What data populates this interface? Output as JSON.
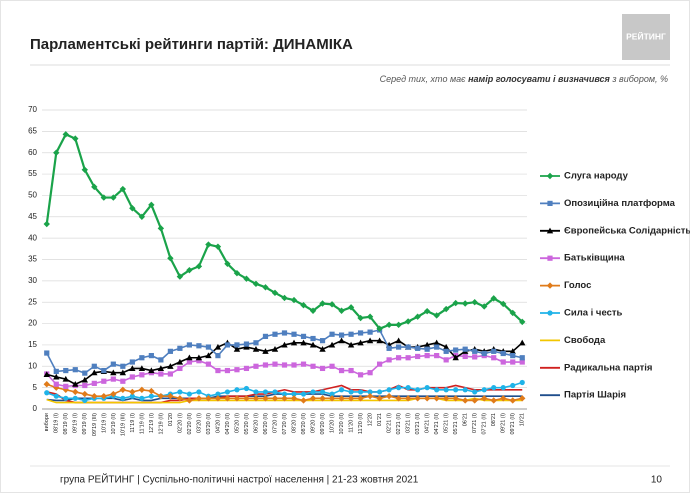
{
  "header": {
    "title": "Парламентські рейтинги партій: ДИНАМІКА",
    "logo": "РЕЙТИНГ",
    "subtitle_parts": [
      "Серед тих, хто має ",
      "намір голосувати і визначився",
      " з вибором, %"
    ]
  },
  "chart_data": {
    "type": "line",
    "categories": [
      "вибори",
      "08'19 (I)",
      "08'19 (II)",
      "09'19 (I)",
      "09'19 (II)",
      "09'19 (III)",
      "10'19 (I)",
      "10'19 (II)",
      "10'19 (III)",
      "11'19 (I)",
      "11'19 (II)",
      "12'19 (I)",
      "12'19 (II)",
      "01'20",
      "02'20 (I)",
      "02'20 (II)",
      "03'20 (I)",
      "03'20 (II)",
      "04'20 (I)",
      "04'20 (II)",
      "05'20 (I)",
      "05'20 (II)",
      "06'20 (I)",
      "06'20 (II)",
      "07'20 (I)",
      "07'20 (II)",
      "08'20 (I)",
      "08'20 (II)",
      "09'20 (I)",
      "09'20 (II)",
      "10'20 (I)",
      "10'20 (II)",
      "11'20 (I)",
      "11'20 (II)",
      "12'20",
      "01'21",
      "02'21 (I)",
      "02'21 (II)",
      "03'21 (I)",
      "03'21 (II)",
      "04'21 (I)",
      "04'21 (II)",
      "05'21 (I)",
      "05'21 (II)",
      "06'21",
      "07'21 (I)",
      "07'21 (II)",
      "08'21",
      "09'21 (I)",
      "09'21 (II)",
      "10'21"
    ],
    "ylim": [
      0,
      70
    ],
    "yticks": [
      0,
      5,
      10,
      15,
      20,
      25,
      30,
      35,
      40,
      45,
      50,
      55,
      60,
      65,
      70
    ],
    "grid": true,
    "legend": "right",
    "series": [
      {
        "name": "Слуга народу",
        "color": "#1aa34a",
        "marker": "diamond",
        "values": [
          43.3,
          60,
          64.3,
          63.3,
          56,
          52,
          49.5,
          49.5,
          51.5,
          47,
          45,
          47.8,
          42.3,
          35.3,
          31,
          32.5,
          33.4,
          38.5,
          38,
          34,
          31.8,
          30.5,
          29.3,
          28.5,
          27.2,
          26,
          25.5,
          24.3,
          23,
          24.7,
          24.5,
          23,
          23.8,
          21.3,
          21.6,
          18.8,
          19.7,
          19.7,
          20.5,
          21.6,
          22.9,
          21.9,
          23.4,
          24.8,
          24.7,
          25,
          24,
          25.9,
          24.6,
          22.5,
          20.4
        ]
      },
      {
        "name": "Опозиційна платформа",
        "color": "#4f7fbf",
        "marker": "square",
        "values": [
          13.1,
          8.8,
          9,
          9.2,
          8.4,
          10,
          9,
          10.5,
          10,
          11,
          12,
          12.5,
          11.5,
          13.5,
          14.2,
          15,
          14.8,
          14.5,
          12.5,
          15,
          15,
          15.2,
          15.5,
          17,
          17.5,
          17.8,
          17.5,
          17,
          16.5,
          16,
          17.5,
          17.3,
          17.5,
          17.8,
          18,
          18.5,
          14.2,
          14.5,
          14.5,
          14.2,
          14,
          14.5,
          13.5,
          13.8,
          14,
          13.5,
          13,
          13.5,
          13,
          12.5,
          12
        ]
      },
      {
        "name": "Європейська Солідарність",
        "color": "#000000",
        "marker": "triangle",
        "values": [
          8.1,
          7.5,
          7,
          5.8,
          6.8,
          8.5,
          8.8,
          8.5,
          8.5,
          9.5,
          9.5,
          9,
          9.5,
          10,
          11,
          12,
          12,
          12.5,
          14.5,
          15.5,
          14,
          14.5,
          14,
          13.5,
          14,
          15,
          15.5,
          15.5,
          15,
          14,
          15,
          16,
          15,
          15.5,
          16,
          16,
          15,
          16,
          14.5,
          14.5,
          15,
          15.5,
          14.5,
          12,
          13.5,
          14,
          13.5,
          14,
          13.5,
          13.5,
          15.5
        ]
      },
      {
        "name": "Батьківщина",
        "color": "#cc66dd",
        "marker": "square",
        "values": [
          8.2,
          5.8,
          5.3,
          5.5,
          5.5,
          6,
          6.5,
          7,
          6.5,
          7.5,
          8,
          8.5,
          8.2,
          8.2,
          9.5,
          11,
          11.3,
          10.5,
          9,
          9,
          9.2,
          9.5,
          10,
          10.3,
          10.5,
          10.3,
          10.3,
          10.5,
          10,
          9.5,
          10,
          9,
          9,
          8,
          8.5,
          10.5,
          11.5,
          12,
          12,
          12.3,
          12.5,
          12.5,
          11.5,
          12.5,
          12.3,
          12.2,
          12.5,
          12,
          11,
          11,
          11
        ]
      },
      {
        "name": "Голос",
        "color": "#e07b1a",
        "marker": "diamond",
        "values": [
          5.8,
          5,
          4.5,
          4,
          3.5,
          3,
          3,
          3.5,
          4.5,
          4,
          4.5,
          4.2,
          3,
          3,
          2.5,
          2,
          2.5,
          2.5,
          2.5,
          2.5,
          2.5,
          2.5,
          2.5,
          2.5,
          2.5,
          2.5,
          2.5,
          2,
          2.5,
          2.5,
          2.5,
          2.5,
          2.5,
          2.5,
          3,
          2.5,
          3,
          2.5,
          2.5,
          2.5,
          2.5,
          2.5,
          2.5,
          2.5,
          2,
          2,
          2.5,
          2,
          2.5,
          2,
          2.5
        ]
      },
      {
        "name": "Сила і честь",
        "color": "#1fb3e8",
        "marker": "circle",
        "values": [
          3.8,
          3,
          2.5,
          2.5,
          2,
          2.5,
          2.5,
          3,
          2.5,
          3,
          2.5,
          3,
          3,
          3.5,
          4,
          3.5,
          4,
          3,
          3.5,
          4,
          4.5,
          4.8,
          4,
          4,
          4,
          3.5,
          3.5,
          3.5,
          4,
          4,
          3.5,
          4.5,
          4,
          4,
          4,
          4,
          4.5,
          5,
          5,
          4.5,
          5,
          4.5,
          4.5,
          4.5,
          4.5,
          4,
          4.5,
          5,
          5,
          5.5,
          6.2
        ]
      },
      {
        "name": "Свобода",
        "color": "#f2c600",
        "marker": "none",
        "values": [
          2.2,
          1.5,
          1.5,
          1.5,
          1.5,
          1.5,
          1.5,
          1.5,
          1.5,
          1.5,
          1.5,
          1.5,
          1.5,
          1.5,
          1.5,
          2,
          2,
          2,
          2,
          2,
          2,
          2,
          2,
          2,
          2,
          2,
          2,
          2,
          2,
          2,
          2,
          2,
          2,
          2,
          2,
          2,
          2,
          2,
          2,
          2.5,
          2.5,
          2.5,
          2,
          2,
          2,
          2.5,
          2,
          2,
          2,
          2,
          2
        ]
      },
      {
        "name": "Радикальна партія",
        "color": "#d0201f",
        "marker": "none",
        "values": [
          4,
          3.5,
          2,
          1.5,
          1.5,
          1.5,
          1.5,
          1.5,
          1.5,
          1.5,
          1.5,
          1.5,
          1.5,
          2,
          2,
          2.5,
          2.5,
          2.5,
          2.5,
          3,
          3,
          3,
          3.5,
          3.5,
          4,
          4.5,
          4,
          4,
          4,
          4.5,
          5,
          5.5,
          4.5,
          4.5,
          4,
          4,
          4.5,
          5.5,
          4.5,
          4.5,
          5,
          5,
          5,
          5.5,
          5,
          4.5,
          4.5,
          4.5,
          4.5,
          4.5,
          4.5
        ]
      },
      {
        "name": "Партія Шарія",
        "color": "#1f4e8c",
        "marker": "none",
        "values": [
          2.2,
          2,
          2,
          2.5,
          2.5,
          2.5,
          2.5,
          2.5,
          2,
          2.5,
          2,
          2,
          2.5,
          2.5,
          2.5,
          2.5,
          2.5,
          2.5,
          3,
          3,
          3,
          3,
          3,
          3,
          3.5,
          3.5,
          3.5,
          3.5,
          3.5,
          3.5,
          3,
          3,
          3,
          3,
          3,
          3,
          3,
          3,
          3,
          3,
          3,
          3,
          3,
          3,
          3,
          3,
          3,
          3,
          3,
          3,
          3
        ]
      }
    ]
  },
  "footer": {
    "text": "група РЕЙТИНГ | Суспільно-політичні настрої населення  | 21-23 жовтня 2021",
    "page": "10"
  }
}
